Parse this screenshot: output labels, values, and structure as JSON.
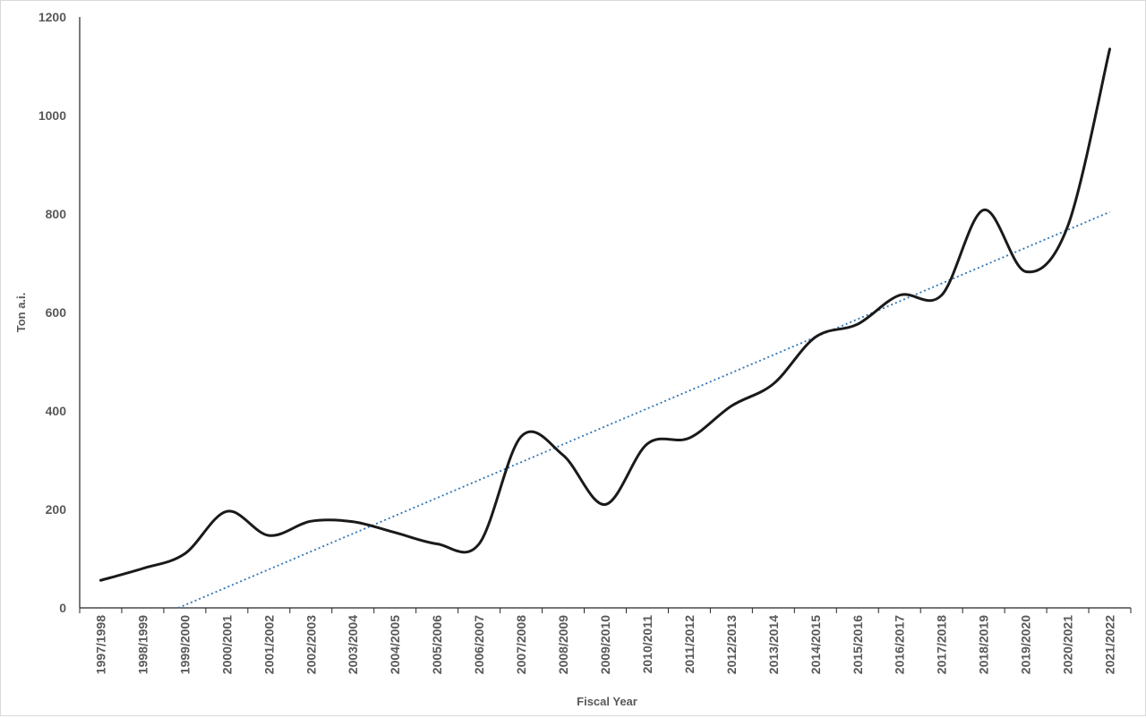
{
  "chart_data": {
    "type": "line",
    "xlabel": "Fiscal Year",
    "ylabel": "Ton a.i.",
    "ylim": [
      0,
      1200
    ],
    "y_ticks": [
      0,
      200,
      400,
      600,
      800,
      1000,
      1200
    ],
    "grid": false,
    "categories": [
      "1997/1998",
      "1998/1999",
      "1999/2000",
      "2000/2001",
      "2001/2002",
      "2002/2003",
      "2003/2004",
      "2004/2005",
      "2005/2006",
      "2006/2007",
      "2007/2008",
      "2008/2009",
      "2009/2010",
      "2010/2011",
      "2011/2012",
      "2012/2013",
      "2013/2014",
      "2014/2015",
      "2015/2016",
      "2016/2017",
      "2017/2018",
      "2018/2019",
      "2019/2020",
      "2020/2021",
      "2021/2022"
    ],
    "series": [
      {
        "style": "solid",
        "color": "#1a1a1a",
        "values": [
          56,
          80,
          110,
          196,
          147,
          176,
          175,
          153,
          130,
          130,
          348,
          310,
          210,
          333,
          345,
          410,
          455,
          550,
          576,
          635,
          635,
          808,
          683,
          775,
          1135
        ]
      }
    ],
    "trendline": {
      "kind": "linear",
      "style": "dotted",
      "color": "#2e75b6",
      "start": {
        "category": "1997/1998",
        "value": -67
      },
      "end": {
        "category": "2021/2022",
        "value": 804
      }
    }
  }
}
